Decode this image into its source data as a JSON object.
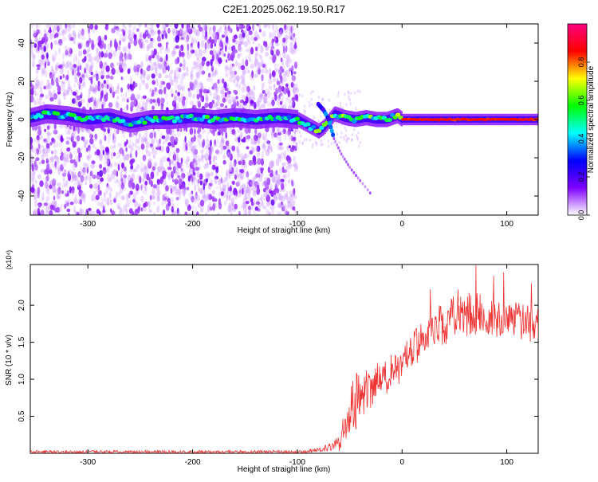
{
  "title": "C2E1.2025.062.19.50.R17",
  "chart_data": [
    {
      "type": "heatmap",
      "xlabel": "Height of straight line (km)",
      "ylabel": "Frequency (Hz)",
      "xlim": [
        -355,
        130
      ],
      "ylim": [
        -50,
        50
      ],
      "xticks": [
        -300,
        -200,
        -100,
        0,
        100
      ],
      "xtick_labels": [
        "-300",
        "-200",
        "-100",
        "0",
        "100"
      ],
      "yticks": [
        -40,
        -20,
        0,
        20,
        40
      ],
      "ytick_labels": [
        "-40",
        "-20",
        "0",
        "20",
        "40"
      ],
      "colorbar": {
        "label": "Normalized spectral amplitude",
        "range": [
          0,
          1
        ],
        "ticks": [
          0.0,
          0.2,
          0.4,
          0.6,
          0.8
        ],
        "tick_labels": [
          "0.0",
          "0.2",
          "0.4",
          "0.6",
          "0.8"
        ],
        "colors": [
          "#ffffff",
          "#8000ff",
          "#0000ff",
          "#00ffff",
          "#00ff00",
          "#ffff00",
          "#ff0000",
          "#ff0080"
        ]
      },
      "main_trace": [
        [
          -355,
          1
        ],
        [
          -340,
          3
        ],
        [
          -320,
          2
        ],
        [
          -300,
          0
        ],
        [
          -280,
          1
        ],
        [
          -260,
          -2
        ],
        [
          -240,
          0
        ],
        [
          -220,
          0
        ],
        [
          -200,
          1
        ],
        [
          -180,
          0
        ],
        [
          -160,
          1
        ],
        [
          -140,
          0
        ],
        [
          -120,
          1
        ],
        [
          -100,
          0
        ],
        [
          -90,
          -3
        ],
        [
          -80,
          -6
        ],
        [
          -75,
          -4
        ],
        [
          -65,
          3
        ],
        [
          -55,
          1
        ],
        [
          -45,
          0
        ],
        [
          -35,
          1
        ],
        [
          -25,
          0
        ],
        [
          -15,
          0
        ],
        [
          -5,
          2
        ],
        [
          0,
          0
        ],
        [
          20,
          0
        ],
        [
          50,
          0
        ],
        [
          80,
          0
        ],
        [
          110,
          0
        ],
        [
          130,
          0
        ]
      ],
      "branch_trace": [
        [
          -80,
          8
        ],
        [
          -75,
          5
        ],
        [
          -70,
          0
        ],
        [
          -65,
          -10
        ],
        [
          -58,
          -18
        ],
        [
          -50,
          -25
        ],
        [
          -40,
          -32
        ],
        [
          -28,
          -40
        ]
      ],
      "noise_region_x": [
        -355,
        -100
      ],
      "noise_range_y": [
        -50,
        50
      ]
    },
    {
      "type": "line",
      "xlabel": "Height of straight line (km)",
      "ylabel": "SNR (10 * v/v)",
      "y_multiplier": "(x10⁴)",
      "xlim": [
        -355,
        130
      ],
      "ylim": [
        0,
        2.55
      ],
      "xticks": [
        -300,
        -200,
        -100,
        0,
        100
      ],
      "xtick_labels": [
        "-300",
        "-200",
        "-100",
        "0",
        "100"
      ],
      "yticks": [
        0.5,
        1.0,
        1.5,
        2.0
      ],
      "ytick_labels": [
        "0.5",
        "1.0",
        "1.5",
        "2.0"
      ],
      "series": [
        {
          "color": "#ee3333",
          "envelope_x": [
            -355,
            -150,
            -100,
            -80,
            -70,
            -60,
            -55,
            -50,
            -45,
            -40,
            -35,
            -30,
            -20,
            -10,
            0,
            10,
            20,
            30,
            40,
            50,
            60,
            70,
            80,
            90,
            100,
            110,
            120,
            130
          ],
          "envelope_mean": [
            0.02,
            0.02,
            0.02,
            0.04,
            0.08,
            0.15,
            0.35,
            0.5,
            0.7,
            0.75,
            0.8,
            0.9,
            1.0,
            1.1,
            1.2,
            1.4,
            1.55,
            1.7,
            1.75,
            1.85,
            1.85,
            1.9,
            1.85,
            1.8,
            1.8,
            1.8,
            1.75,
            1.7
          ],
          "envelope_noise": [
            0.02,
            0.02,
            0.02,
            0.03,
            0.05,
            0.12,
            0.25,
            0.35,
            0.4,
            0.35,
            0.3,
            0.3,
            0.25,
            0.25,
            0.25,
            0.25,
            0.25,
            0.25,
            0.3,
            0.3,
            0.3,
            0.3,
            0.25,
            0.25,
            0.25,
            0.25,
            0.25,
            0.25
          ]
        }
      ]
    }
  ]
}
